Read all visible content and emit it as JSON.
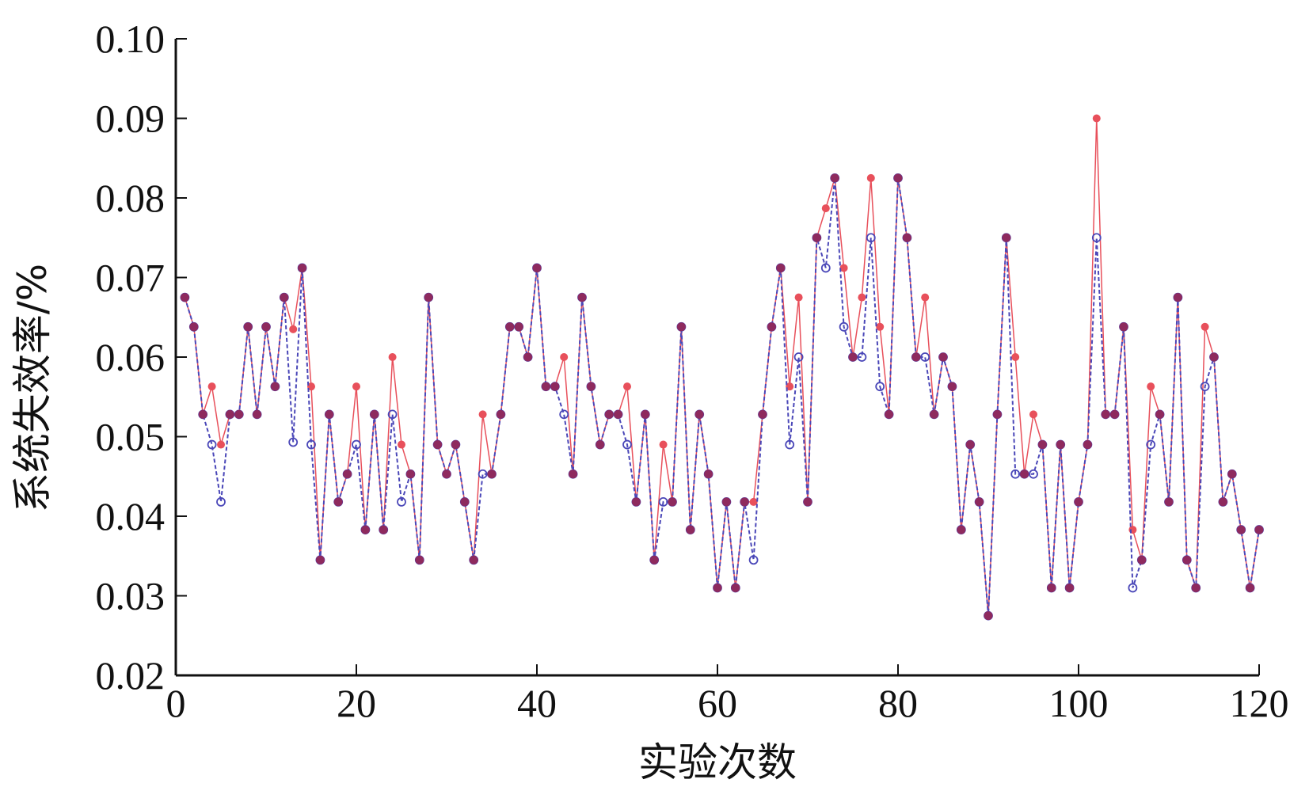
{
  "chart_data": {
    "type": "line",
    "xlabel": "实验次数",
    "ylabel": "系统失效率/%",
    "xlim": [
      0,
      120
    ],
    "ylim": [
      0.02,
      0.1
    ],
    "xticks": [
      "0",
      "20",
      "40",
      "60",
      "80",
      "100",
      "120"
    ],
    "yticks": [
      "0.02",
      "0.03",
      "0.04",
      "0.05",
      "0.06",
      "0.07",
      "0.08",
      "0.09",
      "0.10"
    ],
    "grid": false,
    "legend": "none",
    "x": [
      1,
      2,
      3,
      4,
      5,
      6,
      7,
      8,
      9,
      10,
      11,
      12,
      13,
      14,
      15,
      16,
      17,
      18,
      19,
      20,
      21,
      22,
      23,
      24,
      25,
      26,
      27,
      28,
      29,
      30,
      31,
      32,
      33,
      34,
      35,
      36,
      37,
      38,
      39,
      40,
      41,
      42,
      43,
      44,
      45,
      46,
      47,
      48,
      49,
      50,
      51,
      52,
      53,
      54,
      55,
      56,
      57,
      58,
      59,
      60,
      61,
      62,
      63,
      64,
      65,
      66,
      67,
      68,
      69,
      70,
      71,
      72,
      73,
      74,
      75,
      76,
      77,
      78,
      79,
      80,
      81,
      82,
      83,
      84,
      85,
      86,
      87,
      88,
      89,
      90,
      91,
      92,
      93,
      94,
      95,
      96,
      97,
      98,
      99,
      100,
      101,
      102,
      103,
      104,
      105,
      106,
      107,
      108,
      109,
      110,
      111,
      112,
      113,
      114,
      115,
      116,
      117,
      118,
      119,
      120
    ],
    "series": [
      {
        "color": "#e8505b",
        "marker": "asterisk",
        "line": "solid",
        "values": [
          0.0675,
          0.0638,
          0.0528,
          0.0563,
          0.049,
          0.0528,
          0.0528,
          0.0638,
          0.0528,
          0.0638,
          0.0563,
          0.0675,
          0.0635,
          0.0712,
          0.0563,
          0.0345,
          0.0528,
          0.0418,
          0.0453,
          0.0563,
          0.0383,
          0.0528,
          0.0383,
          0.06,
          0.049,
          0.0453,
          0.0345,
          0.0675,
          0.049,
          0.0453,
          0.049,
          0.0418,
          0.0345,
          0.0528,
          0.0453,
          0.0528,
          0.0638,
          0.0638,
          0.06,
          0.0712,
          0.0563,
          0.0563,
          0.06,
          0.0453,
          0.0675,
          0.0563,
          0.049,
          0.0528,
          0.0528,
          0.0563,
          0.0418,
          0.0528,
          0.0345,
          0.049,
          0.0418,
          0.0638,
          0.0383,
          0.0528,
          0.0453,
          0.031,
          0.0418,
          0.031,
          0.0418,
          0.0418,
          0.0528,
          0.0638,
          0.0712,
          0.0563,
          0.0675,
          0.0418,
          0.075,
          0.0787,
          0.0825,
          0.0712,
          0.06,
          0.0675,
          0.0825,
          0.0638,
          0.0528,
          0.0825,
          0.075,
          0.06,
          0.0675,
          0.0528,
          0.06,
          0.0563,
          0.0383,
          0.049,
          0.0418,
          0.0275,
          0.0528,
          0.075,
          0.06,
          0.0453,
          0.0528,
          0.049,
          0.031,
          0.049,
          0.031,
          0.0418,
          0.049,
          0.09,
          0.0528,
          0.0528,
          0.0638,
          0.0383,
          0.0345,
          0.0563,
          0.0528,
          0.0418,
          0.0675,
          0.0345,
          0.031,
          0.0638,
          0.06,
          0.0418,
          0.0453,
          0.0383,
          0.031,
          0.0383
        ]
      },
      {
        "color": "#4a47b8",
        "marker": "circle",
        "line": "dashed",
        "values": [
          0.0675,
          0.0638,
          0.0528,
          0.049,
          0.0418,
          0.0528,
          0.0528,
          0.0638,
          0.0528,
          0.0638,
          0.0563,
          0.0675,
          0.0493,
          0.0712,
          0.049,
          0.0345,
          0.0528,
          0.0418,
          0.0453,
          0.049,
          0.0383,
          0.0528,
          0.0383,
          0.0528,
          0.0418,
          0.0453,
          0.0345,
          0.0675,
          0.049,
          0.0453,
          0.049,
          0.0418,
          0.0345,
          0.0453,
          0.0453,
          0.0528,
          0.0638,
          0.0638,
          0.06,
          0.0712,
          0.0563,
          0.0563,
          0.0528,
          0.0453,
          0.0675,
          0.0563,
          0.049,
          0.0528,
          0.0528,
          0.049,
          0.0418,
          0.0528,
          0.0345,
          0.0418,
          0.0418,
          0.0638,
          0.0383,
          0.0528,
          0.0453,
          0.031,
          0.0418,
          0.031,
          0.0418,
          0.0345,
          0.0528,
          0.0638,
          0.0712,
          0.049,
          0.06,
          0.0418,
          0.075,
          0.0712,
          0.0825,
          0.0638,
          0.06,
          0.06,
          0.075,
          0.0563,
          0.0528,
          0.0825,
          0.075,
          0.06,
          0.06,
          0.0528,
          0.06,
          0.0563,
          0.0383,
          0.049,
          0.0418,
          0.0275,
          0.0528,
          0.075,
          0.0453,
          0.0453,
          0.0453,
          0.049,
          0.031,
          0.049,
          0.031,
          0.0418,
          0.049,
          0.075,
          0.0528,
          0.0528,
          0.0638,
          0.031,
          0.0345,
          0.049,
          0.0528,
          0.0418,
          0.0675,
          0.0345,
          0.031,
          0.0563,
          0.06,
          0.0418,
          0.0453,
          0.0383,
          0.031,
          0.0383
        ]
      }
    ]
  }
}
